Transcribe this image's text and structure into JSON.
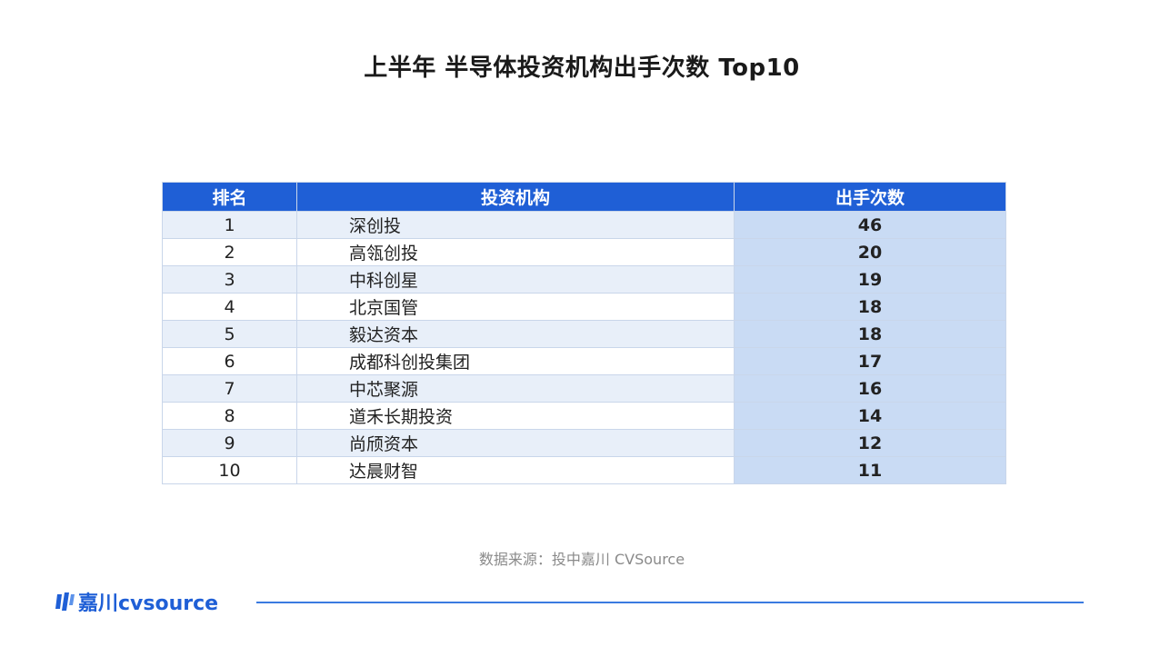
{
  "title": "上半年 半导体投资机构出手次数 Top10",
  "table": {
    "headers": [
      "排名",
      "投资机构",
      "出手次数"
    ],
    "rows": [
      {
        "rank": "1",
        "org": "深创投",
        "count": "46"
      },
      {
        "rank": "2",
        "org": "高瓴创投",
        "count": "20"
      },
      {
        "rank": "3",
        "org": "中科创星",
        "count": "19"
      },
      {
        "rank": "4",
        "org": "北京国管",
        "count": "18"
      },
      {
        "rank": "5",
        "org": "毅达资本",
        "count": "18"
      },
      {
        "rank": "6",
        "org": "成都科创投集团",
        "count": "17"
      },
      {
        "rank": "7",
        "org": "中芯聚源",
        "count": "16"
      },
      {
        "rank": "8",
        "org": "道禾长期投资",
        "count": "14"
      },
      {
        "rank": "9",
        "org": "尚颀资本",
        "count": "12"
      },
      {
        "rank": "10",
        "org": "达晨财智",
        "count": "11"
      }
    ]
  },
  "chart_data": {
    "type": "table",
    "title": "上半年 半导体投资机构出手次数 Top10",
    "columns": [
      "排名",
      "投资机构",
      "出手次数"
    ],
    "categories": [
      "深创投",
      "高瓴创投",
      "中科创星",
      "北京国管",
      "毅达资本",
      "成都科创投集团",
      "中芯聚源",
      "道禾长期投资",
      "尚颀资本",
      "达晨财智"
    ],
    "values": [
      46,
      20,
      19,
      18,
      18,
      17,
      16,
      14,
      12,
      11
    ]
  },
  "source": "数据来源：投中嘉川 CVSource",
  "footer": {
    "logo_text": "嘉川cvsource",
    "logo_icon": "jiachuan-logo-icon"
  },
  "colors": {
    "header_bg": "#1f5fd6",
    "row_alt_bg": "#e8eff9",
    "count_col_bg": "#c9dbf4",
    "accent": "#1f5fd6"
  }
}
